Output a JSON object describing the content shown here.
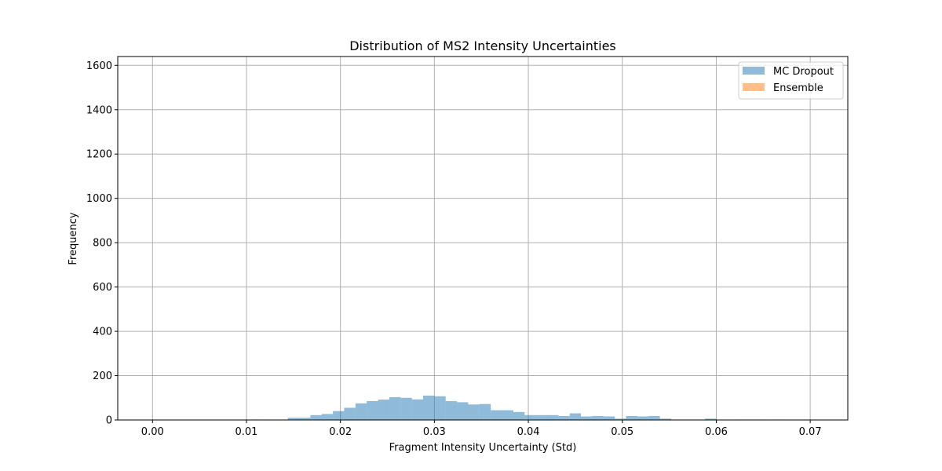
{
  "chart_data": {
    "type": "histogram",
    "title": "Distribution of MS2 Intensity Uncertainties",
    "xlabel": "Fragment Intensity Uncertainty (Std)",
    "ylabel": "Frequency",
    "xlim": [
      -0.0037,
      0.074
    ],
    "ylim": [
      0,
      1640
    ],
    "xticks": [
      0.0,
      0.01,
      0.02,
      0.03,
      0.04,
      0.05,
      0.06,
      0.07
    ],
    "xtick_labels": [
      "0.00",
      "0.01",
      "0.02",
      "0.03",
      "0.04",
      "0.05",
      "0.06",
      "0.07"
    ],
    "yticks": [
      0,
      200,
      400,
      600,
      800,
      1000,
      1200,
      1400,
      1600
    ],
    "ytick_labels": [
      "0",
      "200",
      "400",
      "600",
      "800",
      "1000",
      "1200",
      "1400",
      "1600"
    ],
    "grid": true,
    "legend_position": "top-right",
    "bin_edges": [
      0.0,
      0.0012,
      0.0024,
      0.0036,
      0.0048,
      0.006,
      0.0072,
      0.0084,
      0.0096,
      0.0108,
      0.012,
      0.0132,
      0.0144,
      0.0156,
      0.0168,
      0.018,
      0.0192,
      0.0204,
      0.0216,
      0.0228,
      0.024,
      0.0252,
      0.0264,
      0.0276,
      0.0288,
      0.03,
      0.0312,
      0.0324,
      0.0336,
      0.0348,
      0.036,
      0.0372,
      0.0384,
      0.0396,
      0.0408,
      0.042,
      0.0432,
      0.0444,
      0.0456,
      0.0468,
      0.048,
      0.0492,
      0.0504,
      0.0516,
      0.0528,
      0.054,
      0.0552,
      0.0564,
      0.0576,
      0.0588,
      0.06,
      0.0612,
      0.0624,
      0.0636,
      0.0648,
      0.066,
      0.0672,
      0.0684,
      0.0696,
      0.0708
    ],
    "series": [
      {
        "name": "MC Dropout",
        "color": "#1f77b4",
        "alpha": 0.5,
        "values": [
          0,
          0,
          0,
          0,
          0,
          0,
          0,
          0,
          0,
          2,
          1,
          0,
          10,
          10,
          22,
          27,
          40,
          55,
          75,
          85,
          92,
          103,
          100,
          93,
          110,
          107,
          85,
          80,
          70,
          72,
          44,
          44,
          36,
          22,
          22,
          22,
          18,
          30,
          16,
          18,
          16,
          6,
          18,
          16,
          18,
          6,
          2,
          2,
          2,
          6,
          1,
          0,
          2,
          2,
          1,
          2,
          0,
          0,
          0
        ]
      },
      {
        "name": "Ensemble",
        "color": "#ff7f0e",
        "alpha": 0.5,
        "values": [
          0,
          0,
          0,
          0,
          0,
          0,
          0,
          0,
          0,
          0,
          0,
          0,
          0,
          0,
          0,
          0,
          0,
          0,
          0,
          0,
          0,
          0,
          0,
          0,
          0,
          0,
          0,
          0,
          0,
          0,
          0,
          0,
          0,
          0,
          0,
          0,
          0,
          0,
          0,
          0,
          0,
          0,
          0,
          0,
          0,
          0,
          0,
          0,
          0,
          0,
          0,
          0,
          0,
          0,
          0,
          0,
          0,
          0,
          0
        ]
      }
    ]
  }
}
